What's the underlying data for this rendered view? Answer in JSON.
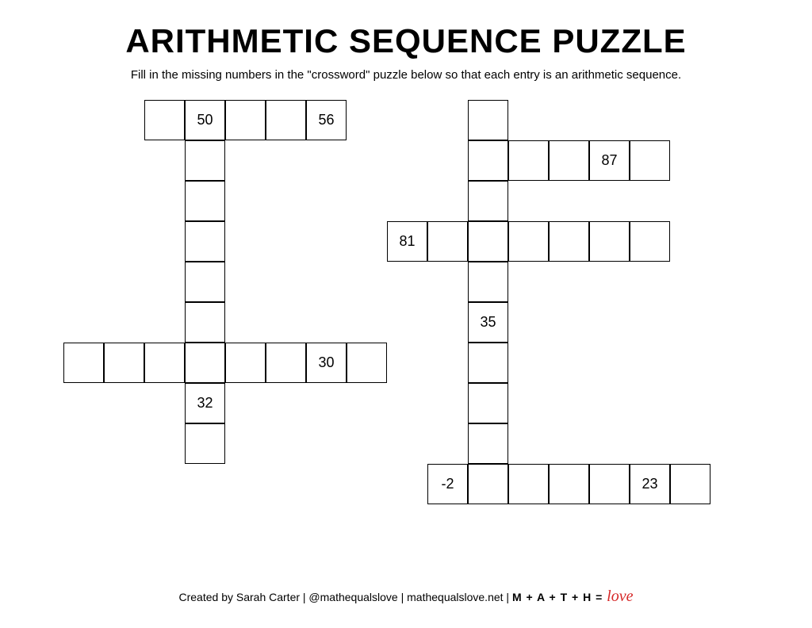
{
  "title": "ARITHMETIC SEQUENCE PUZZLE",
  "subtitle": "Fill in the missing numbers in the \"crossword\" puzzle below so that each entry is an arithmetic sequence.",
  "grid": {
    "cell_size": 51,
    "border_width": 1.5,
    "border_color": "#000000",
    "background_color": "#ffffff",
    "text_color": "#000000",
    "cell_fontsize": 18,
    "cells": [
      {
        "r": 0,
        "c": 2,
        "v": ""
      },
      {
        "r": 0,
        "c": 3,
        "v": "50"
      },
      {
        "r": 0,
        "c": 4,
        "v": ""
      },
      {
        "r": 0,
        "c": 5,
        "v": ""
      },
      {
        "r": 0,
        "c": 6,
        "v": "56"
      },
      {
        "r": 0,
        "c": 10,
        "v": ""
      },
      {
        "r": 1,
        "c": 3,
        "v": ""
      },
      {
        "r": 1,
        "c": 10,
        "v": ""
      },
      {
        "r": 1,
        "c": 11,
        "v": ""
      },
      {
        "r": 1,
        "c": 12,
        "v": ""
      },
      {
        "r": 1,
        "c": 13,
        "v": "87"
      },
      {
        "r": 1,
        "c": 14,
        "v": ""
      },
      {
        "r": 2,
        "c": 3,
        "v": ""
      },
      {
        "r": 2,
        "c": 10,
        "v": ""
      },
      {
        "r": 3,
        "c": 3,
        "v": ""
      },
      {
        "r": 3,
        "c": 8,
        "v": "81"
      },
      {
        "r": 3,
        "c": 9,
        "v": ""
      },
      {
        "r": 3,
        "c": 10,
        "v": ""
      },
      {
        "r": 3,
        "c": 11,
        "v": ""
      },
      {
        "r": 3,
        "c": 12,
        "v": ""
      },
      {
        "r": 3,
        "c": 13,
        "v": ""
      },
      {
        "r": 3,
        "c": 14,
        "v": ""
      },
      {
        "r": 4,
        "c": 3,
        "v": ""
      },
      {
        "r": 4,
        "c": 10,
        "v": ""
      },
      {
        "r": 5,
        "c": 3,
        "v": ""
      },
      {
        "r": 5,
        "c": 10,
        "v": "35"
      },
      {
        "r": 6,
        "c": 0,
        "v": ""
      },
      {
        "r": 6,
        "c": 1,
        "v": ""
      },
      {
        "r": 6,
        "c": 2,
        "v": ""
      },
      {
        "r": 6,
        "c": 3,
        "v": ""
      },
      {
        "r": 6,
        "c": 4,
        "v": ""
      },
      {
        "r": 6,
        "c": 5,
        "v": ""
      },
      {
        "r": 6,
        "c": 6,
        "v": "30"
      },
      {
        "r": 6,
        "c": 7,
        "v": ""
      },
      {
        "r": 6,
        "c": 10,
        "v": ""
      },
      {
        "r": 7,
        "c": 3,
        "v": "32"
      },
      {
        "r": 7,
        "c": 10,
        "v": ""
      },
      {
        "r": 8,
        "c": 3,
        "v": ""
      },
      {
        "r": 8,
        "c": 10,
        "v": ""
      },
      {
        "r": 9,
        "c": 9,
        "v": "-2"
      },
      {
        "r": 9,
        "c": 10,
        "v": ""
      },
      {
        "r": 9,
        "c": 11,
        "v": ""
      },
      {
        "r": 9,
        "c": 12,
        "v": ""
      },
      {
        "r": 9,
        "c": 13,
        "v": ""
      },
      {
        "r": 9,
        "c": 14,
        "v": "23"
      },
      {
        "r": 9,
        "c": 15,
        "v": ""
      }
    ]
  },
  "footer": {
    "text": "Created by Sarah Carter | @mathequalslove | mathequalslove.net | ",
    "equation": "M + A + T + H = ",
    "love": "love"
  },
  "colors": {
    "accent_red": "#d62828",
    "text": "#000000"
  }
}
